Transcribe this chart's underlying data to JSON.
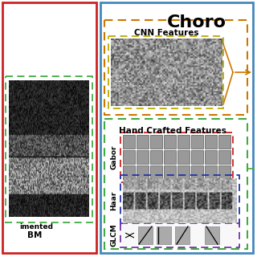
{
  "background_color": "#ffffff",
  "left_border_color": "#cc2222",
  "right_border_color": "#4488bb",
  "oct_dashed_color": "#44aa44",
  "cnn_outer_color": "#cc7700",
  "cnn_inner_color": "#bbaa00",
  "hand_outer_color": "#44aa44",
  "gabor_color": "#cc2222",
  "haar_color": "#2233aa",
  "glcm_color": "#7733aa",
  "title": "Choro",
  "label_cnn": "CNN Features",
  "label_hand": "Hand Crafted Features",
  "label_gabor": "Gabor",
  "label_haar": "Haar",
  "label_glcm": "GLCM",
  "text_line1": "imented",
  "text_line2": "BM"
}
